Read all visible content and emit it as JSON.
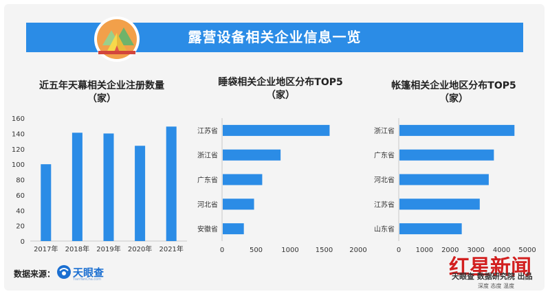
{
  "header": {
    "title": "露营设备相关企业信息一览"
  },
  "charts": [
    {
      "type": "bar",
      "title_line1": "近五年天幕相关企业注册数量",
      "title_line2": "（家）",
      "categories": [
        "2017年",
        "2018年",
        "2019年",
        "2020年",
        "2021年"
      ],
      "values": [
        100,
        141,
        140,
        124,
        149
      ],
      "ylim": [
        0,
        160
      ],
      "yticks": [
        0,
        20,
        40,
        60,
        80,
        100,
        120,
        140,
        160
      ],
      "color": "#2b8ce6"
    },
    {
      "type": "bar",
      "orientation": "horizontal",
      "title_line1": "睡袋相关企业地区分布TOP5",
      "title_line2": "（家）",
      "categories": [
        "江苏省",
        "浙江省",
        "广东省",
        "河北省",
        "安徽省"
      ],
      "values": [
        1580,
        860,
        590,
        470,
        320
      ],
      "xlim": [
        0,
        2000
      ],
      "xticks": [
        0,
        500,
        1000,
        1500,
        2000
      ],
      "color": "#2b8ce6"
    },
    {
      "type": "bar",
      "orientation": "horizontal",
      "title_line1": "帐篷相关企业地区分布TOP5",
      "title_line2": "（家）",
      "categories": [
        "浙江省",
        "广东省",
        "河北省",
        "江苏省",
        "山东省"
      ],
      "values": [
        4500,
        3700,
        3500,
        3150,
        2450
      ],
      "xlim": [
        0,
        5000
      ],
      "xticks": [
        0,
        1000,
        2000,
        3000,
        4000,
        5000
      ],
      "color": "#2b8ce6"
    }
  ],
  "footer": {
    "source_label": "数据来源：",
    "source_name": "天眼查",
    "source_sub": "TianYanCha.com",
    "publisher": "天眼查 数据研究院 出品",
    "watermark": "红星新闻",
    "watermark_slogan": "深度 态度 温度"
  }
}
